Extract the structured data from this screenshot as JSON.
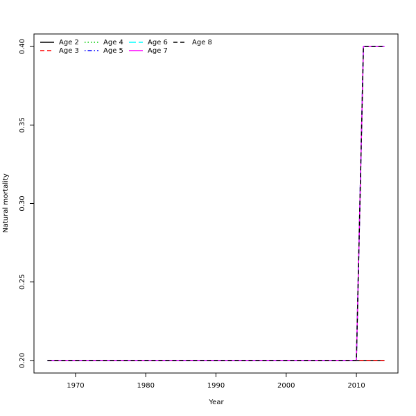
{
  "chart_data": {
    "type": "line",
    "x_label": "Year",
    "y_label": "Natural mortality",
    "x": [
      1966,
      1967,
      1968,
      1969,
      1970,
      1971,
      1972,
      1973,
      1974,
      1975,
      1976,
      1977,
      1978,
      1979,
      1980,
      1981,
      1982,
      1983,
      1984,
      1985,
      1986,
      1987,
      1988,
      1989,
      1990,
      1991,
      1992,
      1993,
      1994,
      1995,
      1996,
      1997,
      1998,
      1999,
      2000,
      2001,
      2002,
      2003,
      2004,
      2005,
      2006,
      2007,
      2008,
      2009,
      2010,
      2011,
      2012,
      2013,
      2014
    ],
    "xlim": [
      1964.08,
      2015.92
    ],
    "xticks": [
      1970,
      1980,
      1990,
      2000,
      2010
    ],
    "ylim": [
      0.192,
      0.408
    ],
    "yticks": [
      {
        "value": 0.2,
        "label": "0.20"
      },
      {
        "value": 0.25,
        "label": "0.25"
      },
      {
        "value": 0.3,
        "label": "0.30"
      },
      {
        "value": 0.35,
        "label": "0.35"
      },
      {
        "value": 0.4,
        "label": "0.40"
      }
    ],
    "legend": "top-left",
    "series": [
      {
        "name": "Age 2",
        "color": "#000000",
        "dash": "none",
        "values": [
          0.2,
          0.2,
          0.2,
          0.2,
          0.2,
          0.2,
          0.2,
          0.2,
          0.2,
          0.2,
          0.2,
          0.2,
          0.2,
          0.2,
          0.2,
          0.2,
          0.2,
          0.2,
          0.2,
          0.2,
          0.2,
          0.2,
          0.2,
          0.2,
          0.2,
          0.2,
          0.2,
          0.2,
          0.2,
          0.2,
          0.2,
          0.2,
          0.2,
          0.2,
          0.2,
          0.2,
          0.2,
          0.2,
          0.2,
          0.2,
          0.2,
          0.2,
          0.2,
          0.2,
          0.2,
          0.2,
          0.2,
          0.2,
          0.2
        ]
      },
      {
        "name": "Age 3",
        "color": "#ff0000",
        "dash": "6,4",
        "values": [
          0.2,
          0.2,
          0.2,
          0.2,
          0.2,
          0.2,
          0.2,
          0.2,
          0.2,
          0.2,
          0.2,
          0.2,
          0.2,
          0.2,
          0.2,
          0.2,
          0.2,
          0.2,
          0.2,
          0.2,
          0.2,
          0.2,
          0.2,
          0.2,
          0.2,
          0.2,
          0.2,
          0.2,
          0.2,
          0.2,
          0.2,
          0.2,
          0.2,
          0.2,
          0.2,
          0.2,
          0.2,
          0.2,
          0.2,
          0.2,
          0.2,
          0.2,
          0.2,
          0.2,
          0.2,
          0.2,
          0.2,
          0.2,
          0.2
        ]
      },
      {
        "name": "Age 4",
        "color": "#00cd00",
        "dash": "1.5,3",
        "values": [
          0.2,
          0.2,
          0.2,
          0.2,
          0.2,
          0.2,
          0.2,
          0.2,
          0.2,
          0.2,
          0.2,
          0.2,
          0.2,
          0.2,
          0.2,
          0.2,
          0.2,
          0.2,
          0.2,
          0.2,
          0.2,
          0.2,
          0.2,
          0.2,
          0.2,
          0.2,
          0.2,
          0.2,
          0.2,
          0.2,
          0.2,
          0.2,
          0.2,
          0.2,
          0.2,
          0.2,
          0.2,
          0.2,
          0.2,
          0.2,
          0.2,
          0.2,
          0.2,
          0.2,
          0.2,
          0.4,
          0.4,
          0.4,
          0.4
        ]
      },
      {
        "name": "Age 5",
        "color": "#0000ff",
        "dash": "1.5,3,6,3",
        "values": [
          0.2,
          0.2,
          0.2,
          0.2,
          0.2,
          0.2,
          0.2,
          0.2,
          0.2,
          0.2,
          0.2,
          0.2,
          0.2,
          0.2,
          0.2,
          0.2,
          0.2,
          0.2,
          0.2,
          0.2,
          0.2,
          0.2,
          0.2,
          0.2,
          0.2,
          0.2,
          0.2,
          0.2,
          0.2,
          0.2,
          0.2,
          0.2,
          0.2,
          0.2,
          0.2,
          0.2,
          0.2,
          0.2,
          0.2,
          0.2,
          0.2,
          0.2,
          0.2,
          0.2,
          0.2,
          0.4,
          0.4,
          0.4,
          0.4
        ]
      },
      {
        "name": "Age 6",
        "color": "#00ffff",
        "dash": "10,4",
        "values": [
          0.2,
          0.2,
          0.2,
          0.2,
          0.2,
          0.2,
          0.2,
          0.2,
          0.2,
          0.2,
          0.2,
          0.2,
          0.2,
          0.2,
          0.2,
          0.2,
          0.2,
          0.2,
          0.2,
          0.2,
          0.2,
          0.2,
          0.2,
          0.2,
          0.2,
          0.2,
          0.2,
          0.2,
          0.2,
          0.2,
          0.2,
          0.2,
          0.2,
          0.2,
          0.2,
          0.2,
          0.2,
          0.2,
          0.2,
          0.2,
          0.2,
          0.2,
          0.2,
          0.2,
          0.2,
          0.4,
          0.4,
          0.4,
          0.4
        ]
      },
      {
        "name": "Age 7",
        "color": "#ff00ff",
        "dash": "none",
        "values": [
          0.2,
          0.2,
          0.2,
          0.2,
          0.2,
          0.2,
          0.2,
          0.2,
          0.2,
          0.2,
          0.2,
          0.2,
          0.2,
          0.2,
          0.2,
          0.2,
          0.2,
          0.2,
          0.2,
          0.2,
          0.2,
          0.2,
          0.2,
          0.2,
          0.2,
          0.2,
          0.2,
          0.2,
          0.2,
          0.2,
          0.2,
          0.2,
          0.2,
          0.2,
          0.2,
          0.2,
          0.2,
          0.2,
          0.2,
          0.2,
          0.2,
          0.2,
          0.2,
          0.2,
          0.2,
          0.4,
          0.4,
          0.4,
          0.4
        ]
      },
      {
        "name": "Age 8",
        "color": "#000000",
        "dash": "6,4",
        "values": [
          0.2,
          0.2,
          0.2,
          0.2,
          0.2,
          0.2,
          0.2,
          0.2,
          0.2,
          0.2,
          0.2,
          0.2,
          0.2,
          0.2,
          0.2,
          0.2,
          0.2,
          0.2,
          0.2,
          0.2,
          0.2,
          0.2,
          0.2,
          0.2,
          0.2,
          0.2,
          0.2,
          0.2,
          0.2,
          0.2,
          0.2,
          0.2,
          0.2,
          0.2,
          0.2,
          0.2,
          0.2,
          0.2,
          0.2,
          0.2,
          0.2,
          0.2,
          0.2,
          0.2,
          0.2,
          0.4,
          0.4,
          0.4,
          0.4
        ]
      }
    ]
  }
}
